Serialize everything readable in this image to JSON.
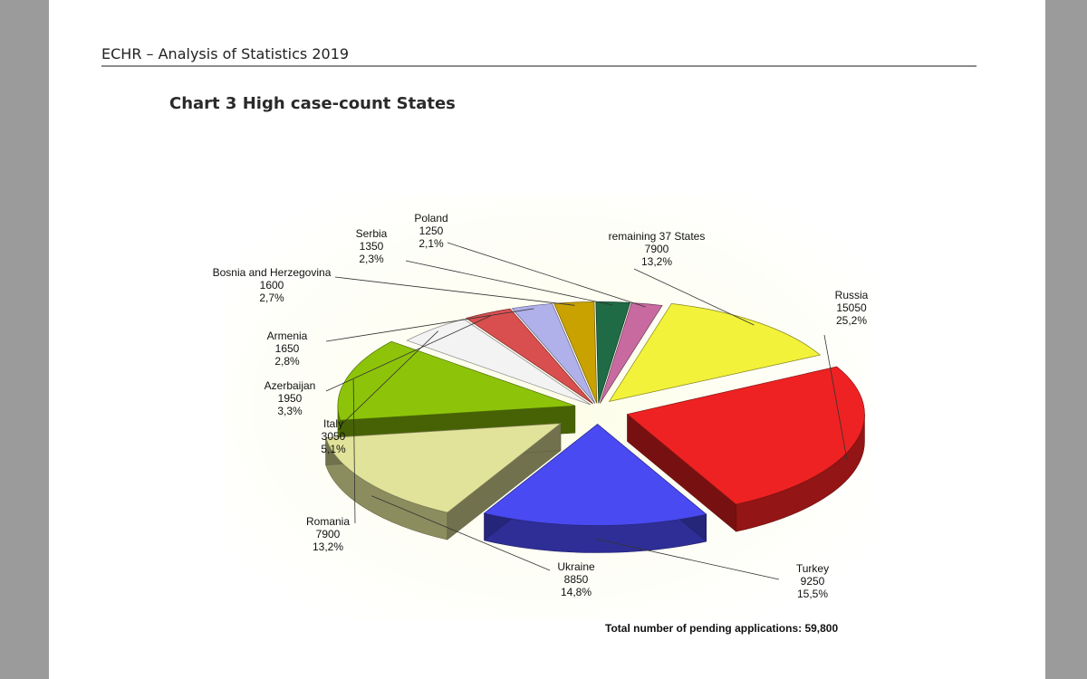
{
  "header": {
    "title": "ECHR – Analysis of Statistics 2019"
  },
  "chart_data": {
    "type": "pie",
    "title": "Chart 3  High case-count States",
    "footnote": "Total number of pending applications: 59,800",
    "slices": [
      {
        "label": "Russia",
        "value": "15050",
        "percent": "25,2%",
        "color": "#ee2222",
        "frac": 0.252
      },
      {
        "label": "Turkey",
        "value": "9250",
        "percent": "15,5%",
        "color": "#4a4af2",
        "frac": 0.155
      },
      {
        "label": "Ukraine",
        "value": "8850",
        "percent": "14,8%",
        "color": "#e2e39a",
        "frac": 0.148
      },
      {
        "label": "Romania",
        "value": "7900",
        "percent": "13,2%",
        "color": "#8dc40a",
        "frac": 0.132
      },
      {
        "label": "Italy",
        "value": "3050",
        "percent": "5,1%",
        "color": "#f3f3f3",
        "frac": 0.051
      },
      {
        "label": "Azerbaijan",
        "value": "1950",
        "percent": "3,3%",
        "color": "#d94f4f",
        "frac": 0.033
      },
      {
        "label": "Armenia",
        "value": "1650",
        "percent": "2,8%",
        "color": "#b0b0ea",
        "frac": 0.028
      },
      {
        "label": "Bosnia and Herzegovina",
        "value": "1600",
        "percent": "2,7%",
        "color": "#c9a200",
        "frac": 0.027
      },
      {
        "label": "Serbia",
        "value": "1350",
        "percent": "2,3%",
        "color": "#1f6b45",
        "frac": 0.023
      },
      {
        "label": "Poland",
        "value": "1250",
        "percent": "2,1%",
        "color": "#c86aa0",
        "frac": 0.021
      },
      {
        "label": "remaining 37 States",
        "value": "7900",
        "percent": "13,2%",
        "color": "#f2f23a",
        "frac": 0.132
      }
    ]
  }
}
